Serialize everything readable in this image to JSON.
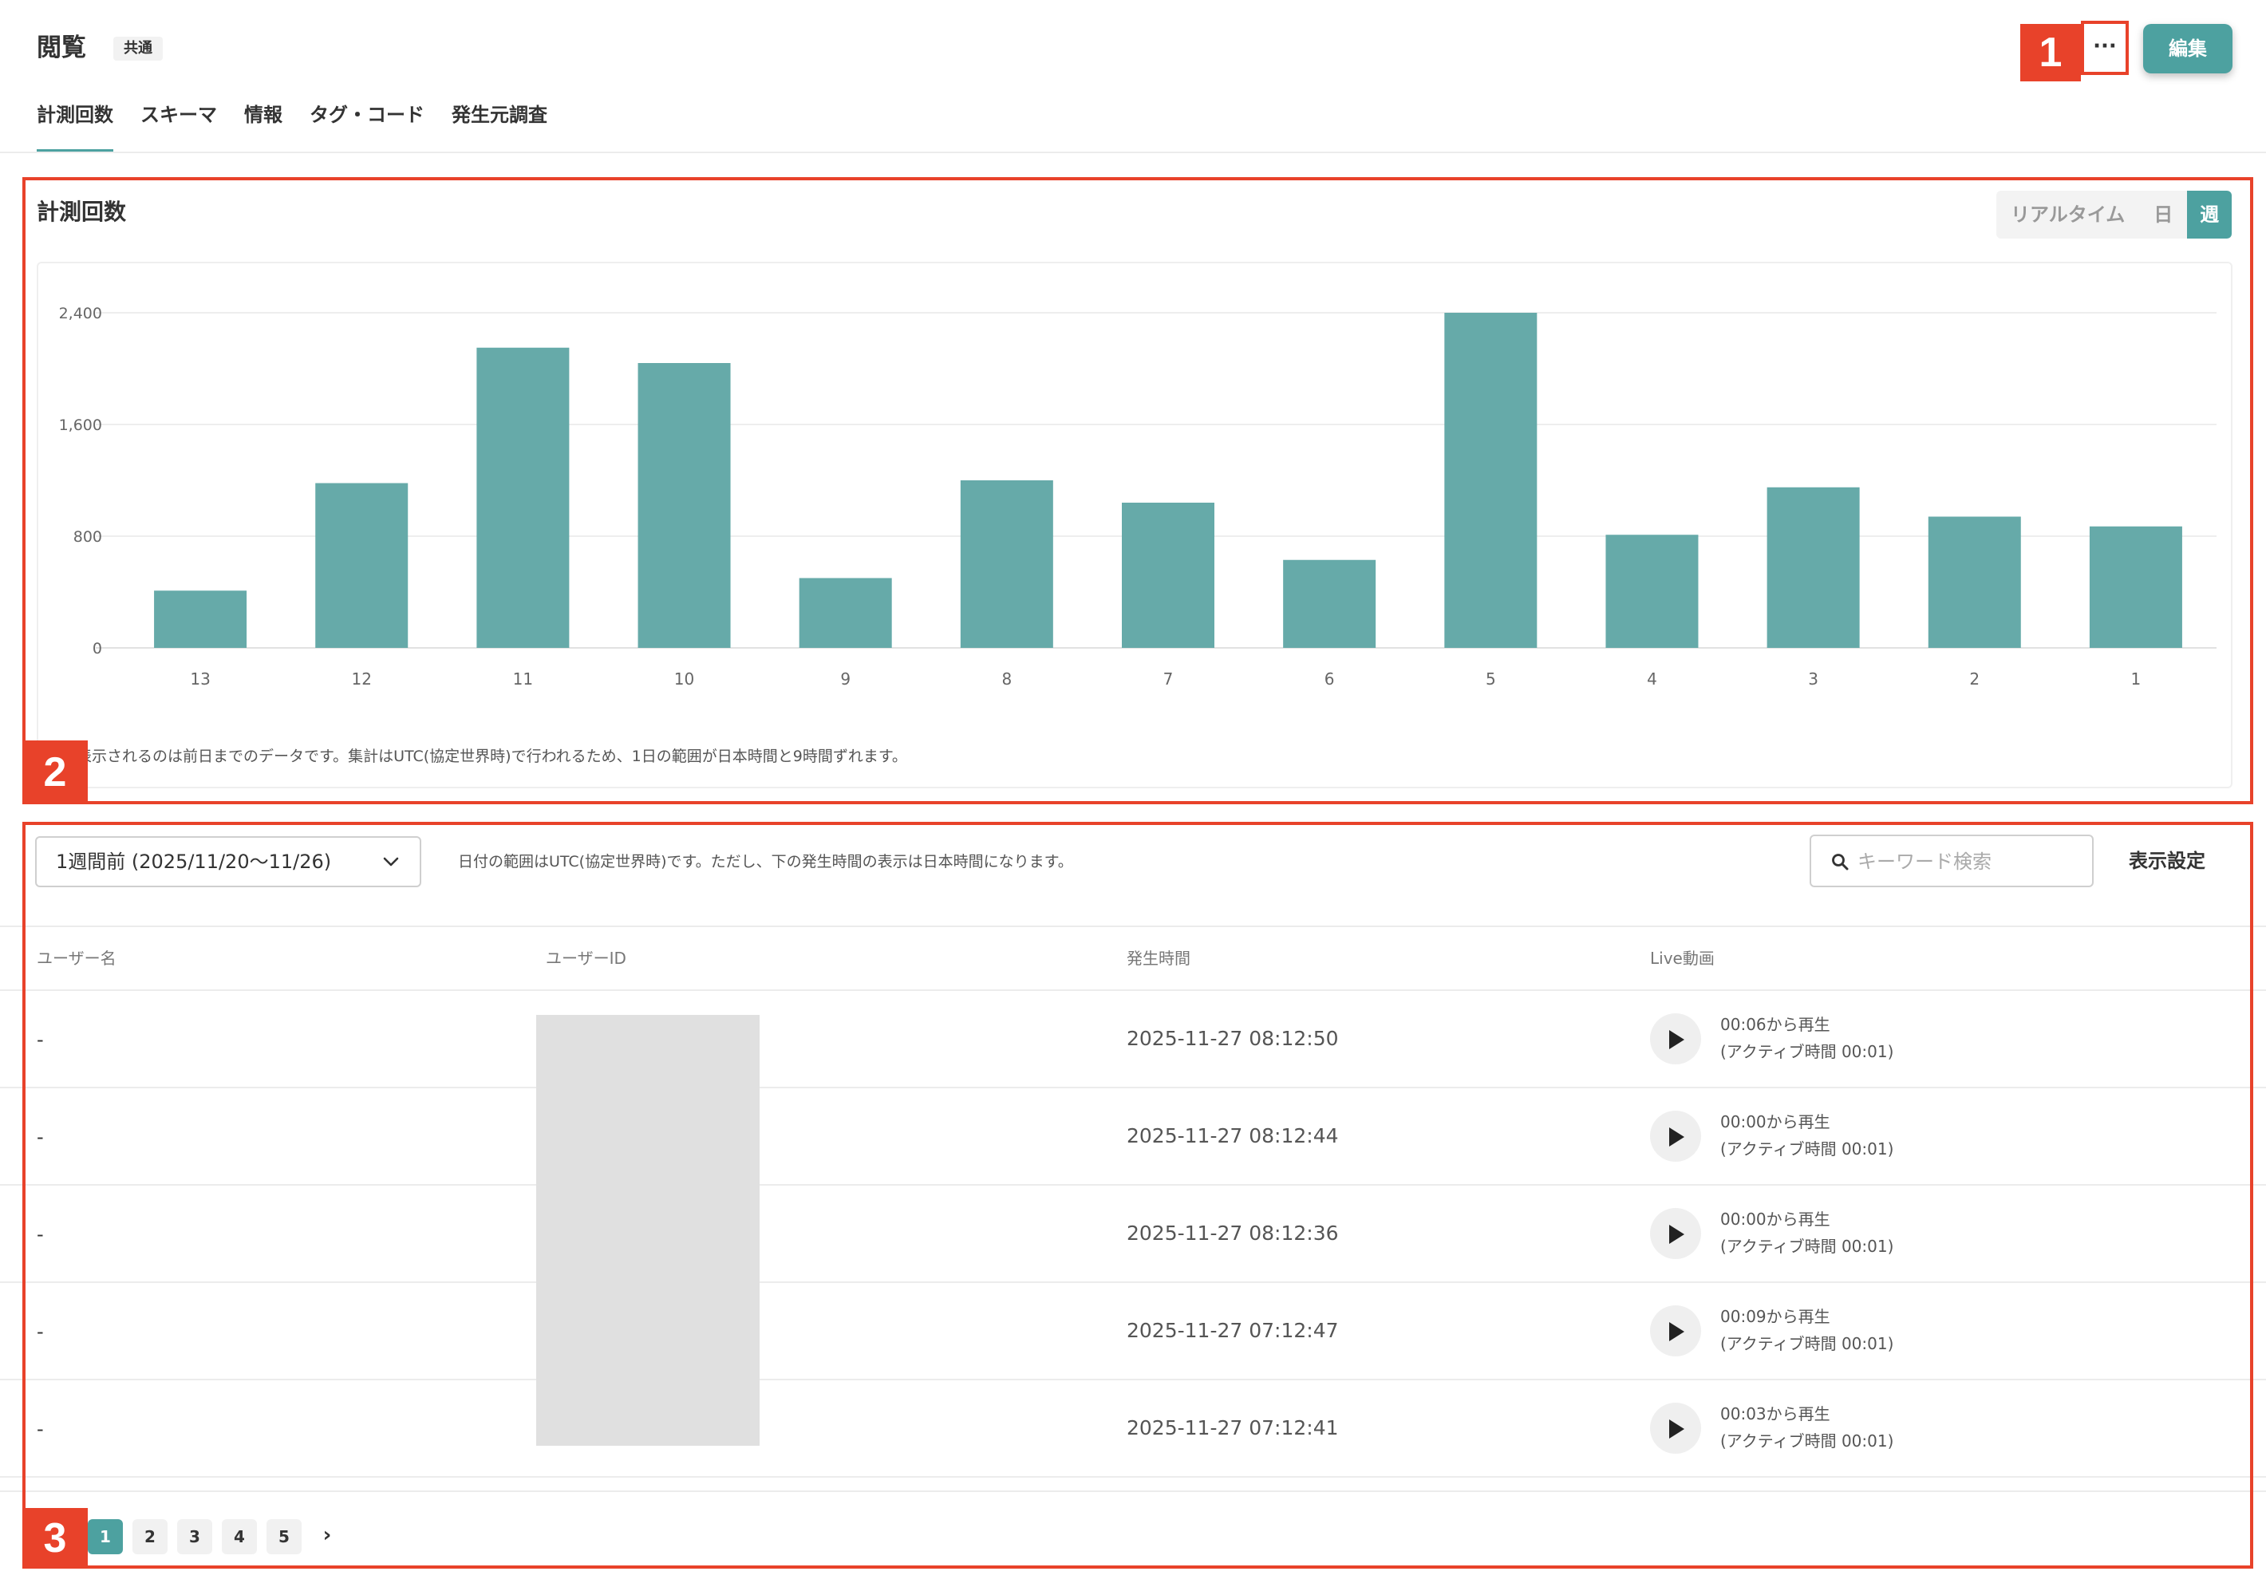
{
  "header": {
    "title": "閲覧",
    "scope_badge": "共通",
    "more_label": "···",
    "edit_label": "編集"
  },
  "tabs": [
    {
      "label": "計測回数",
      "active": true
    },
    {
      "label": "スキーマ",
      "active": false
    },
    {
      "label": "情報",
      "active": false
    },
    {
      "label": "タグ・コード",
      "active": false
    },
    {
      "label": "発生元調査",
      "active": false
    }
  ],
  "annotations": [
    "1",
    "2",
    "3"
  ],
  "chart_section": {
    "title": "計測回数",
    "periods": [
      {
        "label": "リアルタイム",
        "selected": false
      },
      {
        "label": "日",
        "selected": false
      },
      {
        "label": "週",
        "selected": true
      }
    ],
    "note": "表示されるのは前日までのデータです。集計はUTC(協定世界時)で行われるため、1日の範囲が日本時間と9時間ずれます。"
  },
  "chart_data": {
    "type": "bar",
    "categories": [
      "13",
      "12",
      "11",
      "10",
      "9",
      "8",
      "7",
      "6",
      "5",
      "4",
      "3",
      "2",
      "1"
    ],
    "values": [
      410,
      1180,
      2150,
      2040,
      500,
      1200,
      1040,
      630,
      2400,
      810,
      1150,
      940,
      870
    ],
    "yticks": [
      0,
      800,
      1600,
      2400
    ],
    "ytick_labels": [
      "0",
      "800",
      "1,600",
      "2,400"
    ],
    "ylim": [
      0,
      2400
    ],
    "color": "#66aaa9",
    "grid": true,
    "title": "",
    "xlabel": "",
    "ylabel": ""
  },
  "filter": {
    "range_label": "1週間前 (2025/11/20〜11/26)",
    "range_note": "日付の範囲はUTC(協定世界時)です。ただし、下の発生時間の表示は日本時間になります。",
    "search_placeholder": "キーワード検索",
    "display_settings_label": "表示設定"
  },
  "table": {
    "columns": [
      "ユーザー名",
      "ユーザーID",
      "発生時間",
      "Live動画"
    ],
    "rows": [
      {
        "user_name": "-",
        "time": "2025-11-27 08:12:50",
        "live_start": "00:06から再生",
        "live_active": "(アクティブ時間 00:01)"
      },
      {
        "user_name": "-",
        "time": "2025-11-27 08:12:44",
        "live_start": "00:00から再生",
        "live_active": "(アクティブ時間 00:01)"
      },
      {
        "user_name": "-",
        "time": "2025-11-27 08:12:36",
        "live_start": "00:00から再生",
        "live_active": "(アクティブ時間 00:01)"
      },
      {
        "user_name": "-",
        "time": "2025-11-27 07:12:47",
        "live_start": "00:09から再生",
        "live_active": "(アクティブ時間 00:01)"
      },
      {
        "user_name": "-",
        "time": "2025-11-27 07:12:41",
        "live_start": "00:03から再生",
        "live_active": "(アクティブ時間 00:01)"
      }
    ]
  },
  "pagination": {
    "pages": [
      "1",
      "2",
      "3",
      "4",
      "5"
    ],
    "current": "1",
    "next_label": "›"
  },
  "colors": {
    "accent": "#4da1a0",
    "bar": "#66aaa9",
    "annotation": "#e8422a"
  },
  "icons": [
    "chevron-down-icon",
    "search-icon",
    "play-icon",
    "chevron-right-icon"
  ]
}
